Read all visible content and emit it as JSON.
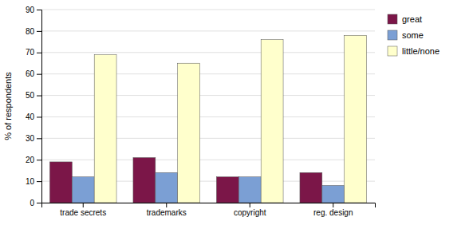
{
  "chart_data": {
    "type": "bar",
    "categories": [
      "trade secrets",
      "trademarks",
      "copyright",
      "reg. design"
    ],
    "series": [
      {
        "name": "great",
        "color": "#7b1648",
        "values": [
          19,
          21,
          12,
          14
        ]
      },
      {
        "name": "some",
        "color": "#7b9fd4",
        "values": [
          12,
          14,
          12,
          8
        ]
      },
      {
        "name": "little/none",
        "color": "#ffffcc",
        "values": [
          69,
          65,
          76,
          78
        ]
      }
    ],
    "ylabel": "% of respondents",
    "ylim": [
      0,
      90
    ],
    "yticks": [
      0,
      10,
      20,
      30,
      40,
      50,
      60,
      70,
      80,
      90
    ],
    "grid": true,
    "legend": "right"
  }
}
